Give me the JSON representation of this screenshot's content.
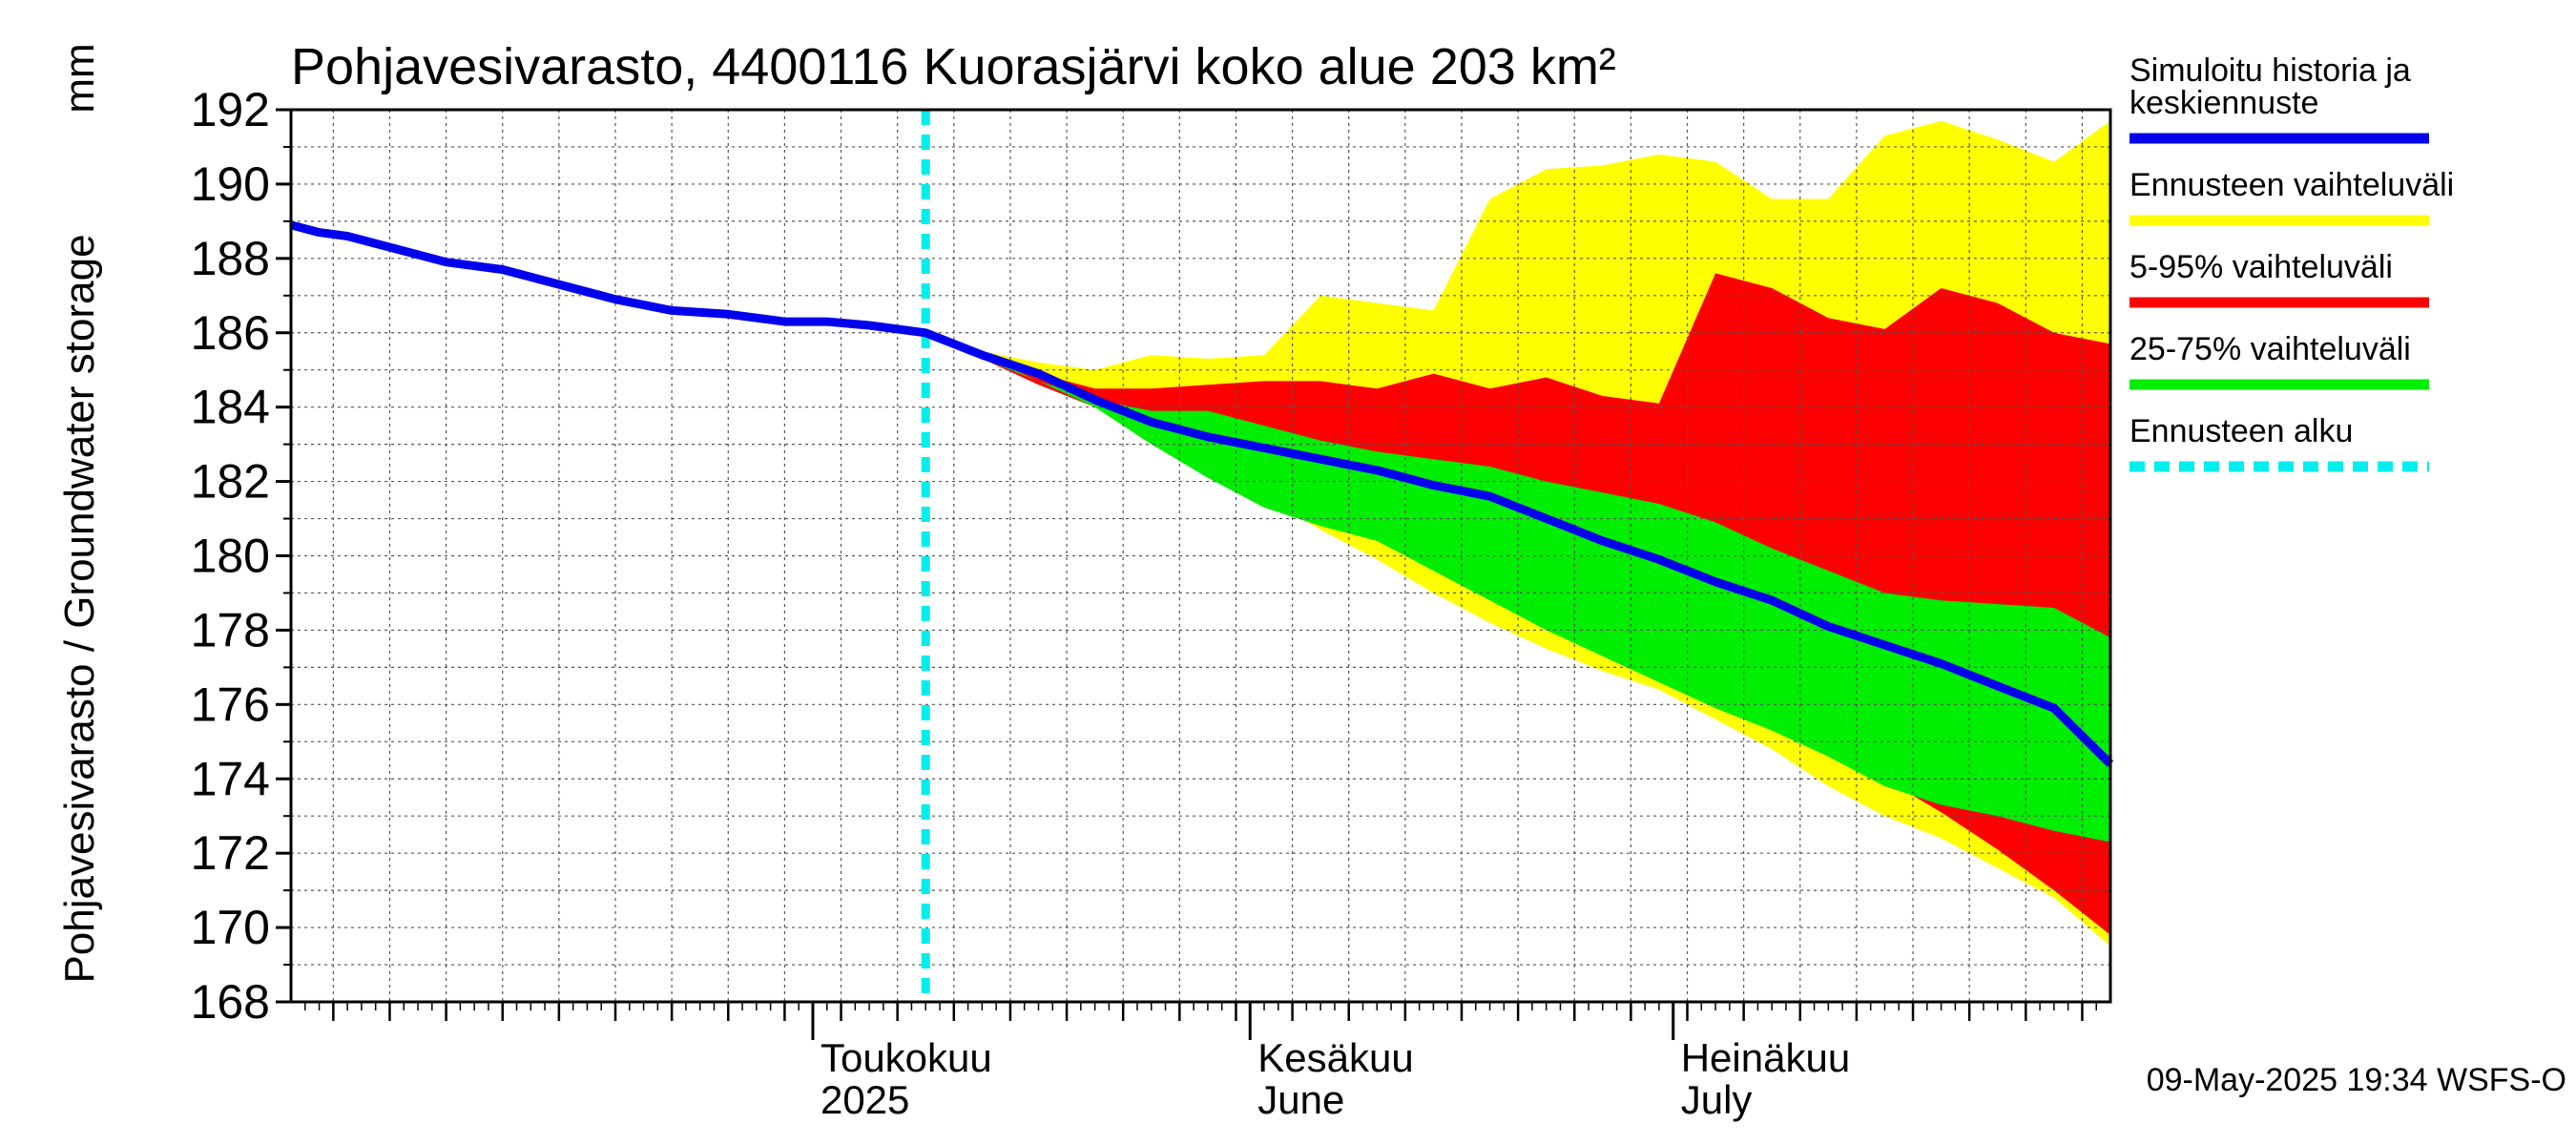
{
  "chart_data": {
    "type": "area",
    "title": "Pohjavesivarasto, 4400116 Kuorasjärvi koko alue 203 km²",
    "ylabel": "Pohjavesivarasto / Groundwater storage",
    "yunit": "mm",
    "ylim": [
      168,
      192
    ],
    "yticks": [
      168,
      170,
      172,
      174,
      176,
      178,
      180,
      182,
      184,
      186,
      188,
      190,
      192
    ],
    "xlim": [
      "2025-03-25",
      "2025-08-01"
    ],
    "grid": true,
    "legend_placement": "right",
    "x_month_labels": [
      {
        "date": "2025-05-01",
        "line1": "Toukokuu",
        "line2": "2025"
      },
      {
        "date": "2025-06-01",
        "line1": "Kesäkuu",
        "line2": "June"
      },
      {
        "date": "2025-07-01",
        "line1": "Heinäkuu",
        "line2": "July"
      }
    ],
    "forecast_start": "2025-05-09",
    "colors": {
      "history": "#0000ee",
      "full_range": "#ffff00",
      "p5_95": "#ff0000",
      "p25_75": "#00ee00",
      "forecast_start": "#00eeee",
      "grid": "#555555"
    },
    "series": [
      {
        "name": "Simuloitu historia ja keskiennuste",
        "role": "history",
        "x": [
          "2025-03-25",
          "2025-03-27",
          "2025-03-29",
          "2025-04-01",
          "2025-04-05",
          "2025-04-09",
          "2025-04-13",
          "2025-04-17",
          "2025-04-21",
          "2025-04-25",
          "2025-04-29",
          "2025-05-02",
          "2025-05-05",
          "2025-05-09",
          "2025-05-13",
          "2025-05-17",
          "2025-05-21",
          "2025-05-25",
          "2025-05-29",
          "2025-06-02",
          "2025-06-06",
          "2025-06-10",
          "2025-06-14",
          "2025-06-18",
          "2025-06-22",
          "2025-06-26",
          "2025-06-30",
          "2025-07-04",
          "2025-07-08",
          "2025-07-12",
          "2025-07-16",
          "2025-07-20",
          "2025-07-24",
          "2025-07-28",
          "2025-08-01"
        ],
        "values": [
          188.9,
          188.7,
          188.6,
          188.3,
          187.9,
          187.7,
          187.3,
          186.9,
          186.6,
          186.5,
          186.3,
          186.3,
          186.2,
          186.0,
          185.4,
          184.9,
          184.2,
          183.6,
          183.2,
          182.9,
          182.6,
          182.3,
          181.9,
          181.6,
          181.0,
          180.4,
          179.9,
          179.3,
          178.8,
          178.1,
          177.6,
          177.1,
          176.5,
          175.9,
          174.4
        ]
      },
      {
        "name": "Ennusteen vaihteluväli",
        "role": "full_range",
        "x": [
          "2025-05-09",
          "2025-05-13",
          "2025-05-17",
          "2025-05-21",
          "2025-05-25",
          "2025-05-29",
          "2025-06-02",
          "2025-06-06",
          "2025-06-10",
          "2025-06-14",
          "2025-06-18",
          "2025-06-22",
          "2025-06-26",
          "2025-06-30",
          "2025-07-04",
          "2025-07-08",
          "2025-07-12",
          "2025-07-16",
          "2025-07-20",
          "2025-07-24",
          "2025-07-28",
          "2025-08-01"
        ],
        "upper": [
          186.0,
          185.5,
          185.2,
          185.0,
          185.4,
          185.3,
          185.4,
          187.0,
          186.8,
          186.6,
          189.6,
          190.4,
          190.5,
          190.8,
          190.6,
          189.6,
          189.6,
          191.3,
          191.7,
          191.2,
          190.6,
          191.7
        ],
        "lower": [
          186.0,
          185.3,
          184.7,
          184.0,
          183.2,
          182.3,
          181.6,
          180.7,
          179.9,
          179.0,
          178.2,
          177.5,
          176.9,
          176.4,
          175.6,
          174.8,
          173.8,
          173.0,
          172.4,
          171.6,
          170.8,
          169.5
        ]
      },
      {
        "name": "5-95% vaihteluväli",
        "role": "p5_95",
        "x": [
          "2025-05-09",
          "2025-05-13",
          "2025-05-17",
          "2025-05-21",
          "2025-05-25",
          "2025-05-29",
          "2025-06-02",
          "2025-06-06",
          "2025-06-10",
          "2025-06-14",
          "2025-06-18",
          "2025-06-22",
          "2025-06-26",
          "2025-06-30",
          "2025-07-04",
          "2025-07-08",
          "2025-07-12",
          "2025-07-16",
          "2025-07-20",
          "2025-07-24",
          "2025-07-28",
          "2025-08-01"
        ],
        "upper": [
          186.0,
          185.4,
          184.9,
          184.5,
          184.5,
          184.6,
          184.7,
          184.7,
          184.5,
          184.9,
          184.5,
          184.8,
          184.3,
          184.1,
          187.6,
          187.2,
          186.4,
          186.1,
          187.2,
          186.8,
          186.0,
          185.7
        ],
        "lower": [
          186.0,
          185.3,
          184.6,
          184.0,
          183.3,
          182.4,
          181.8,
          181.1,
          180.4,
          179.8,
          179.0,
          178.4,
          177.6,
          177.1,
          176.3,
          175.6,
          174.8,
          174.0,
          173.1,
          172.1,
          171.0,
          169.8
        ]
      },
      {
        "name": "25-75% vaihteluväli",
        "role": "p25_75",
        "x": [
          "2025-05-09",
          "2025-05-13",
          "2025-05-17",
          "2025-05-21",
          "2025-05-25",
          "2025-05-29",
          "2025-06-02",
          "2025-06-06",
          "2025-06-10",
          "2025-06-14",
          "2025-06-18",
          "2025-06-22",
          "2025-06-26",
          "2025-06-30",
          "2025-07-04",
          "2025-07-08",
          "2025-07-12",
          "2025-07-16",
          "2025-07-20",
          "2025-07-24",
          "2025-07-28",
          "2025-08-01"
        ],
        "upper": [
          186.0,
          185.4,
          184.7,
          184.2,
          183.9,
          183.9,
          183.5,
          183.1,
          182.8,
          182.6,
          182.4,
          182.0,
          181.7,
          181.4,
          180.9,
          180.2,
          179.6,
          179.0,
          178.8,
          178.7,
          178.6,
          177.8
        ],
        "lower": [
          186.0,
          185.3,
          184.7,
          184.0,
          183.0,
          182.1,
          181.3,
          180.8,
          180.4,
          179.6,
          178.8,
          178.0,
          177.3,
          176.6,
          175.9,
          175.3,
          174.6,
          173.8,
          173.3,
          173.0,
          172.6,
          172.3
        ]
      },
      {
        "name": "Ennusteen alku",
        "role": "forecast_start"
      }
    ]
  },
  "footer": "09-May-2025 19:34 WSFS-O"
}
